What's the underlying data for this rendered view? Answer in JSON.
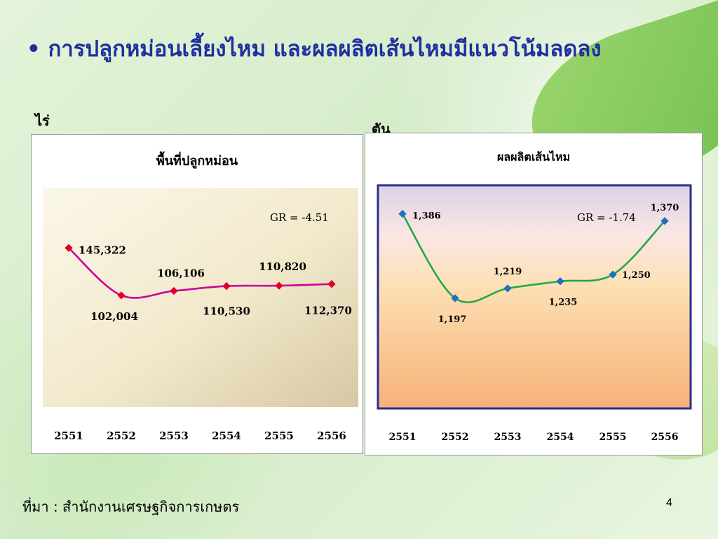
{
  "slide": {
    "title": "• การปลูกหม่อนเลี้ยงไหม และผลผลิตเส้นไหมมีแนวโน้มลดลง",
    "unit_left": "ไร่",
    "unit_right": "ตัน",
    "source": "ที่มา : สำนักงานเศรษฐกิจการเกษตร",
    "page_number": "4"
  },
  "chart_data": [
    {
      "type": "line",
      "title": "พื้นที่ปลูกหม่อน",
      "categories": [
        "2551",
        "2552",
        "2553",
        "2554",
        "2555",
        "2556"
      ],
      "values": [
        145322,
        102004,
        106106,
        110530,
        110820,
        112370
      ],
      "labels": [
        "145,322",
        "102,004",
        "106,106",
        "110,530",
        "110,820",
        "112,370"
      ],
      "annotation": "GR = -4.51",
      "ylim": [
        0,
        200000
      ],
      "color": "#cc0099",
      "marker_color": "#e0002a"
    },
    {
      "type": "line",
      "title": "ผลผลิตเส้นไหม",
      "categories": [
        "2551",
        "2552",
        "2553",
        "2554",
        "2555",
        "2556"
      ],
      "values": [
        1386,
        1197,
        1219,
        1235,
        1250,
        1370
      ],
      "labels": [
        "1,386",
        "1,197",
        "1,219",
        "1,235",
        "1,250",
        "1,370"
      ],
      "annotation": "GR = -1.74",
      "ylim": [
        950,
        1450
      ],
      "color": "#22a84a",
      "marker_color": "#1f6fc0"
    }
  ]
}
